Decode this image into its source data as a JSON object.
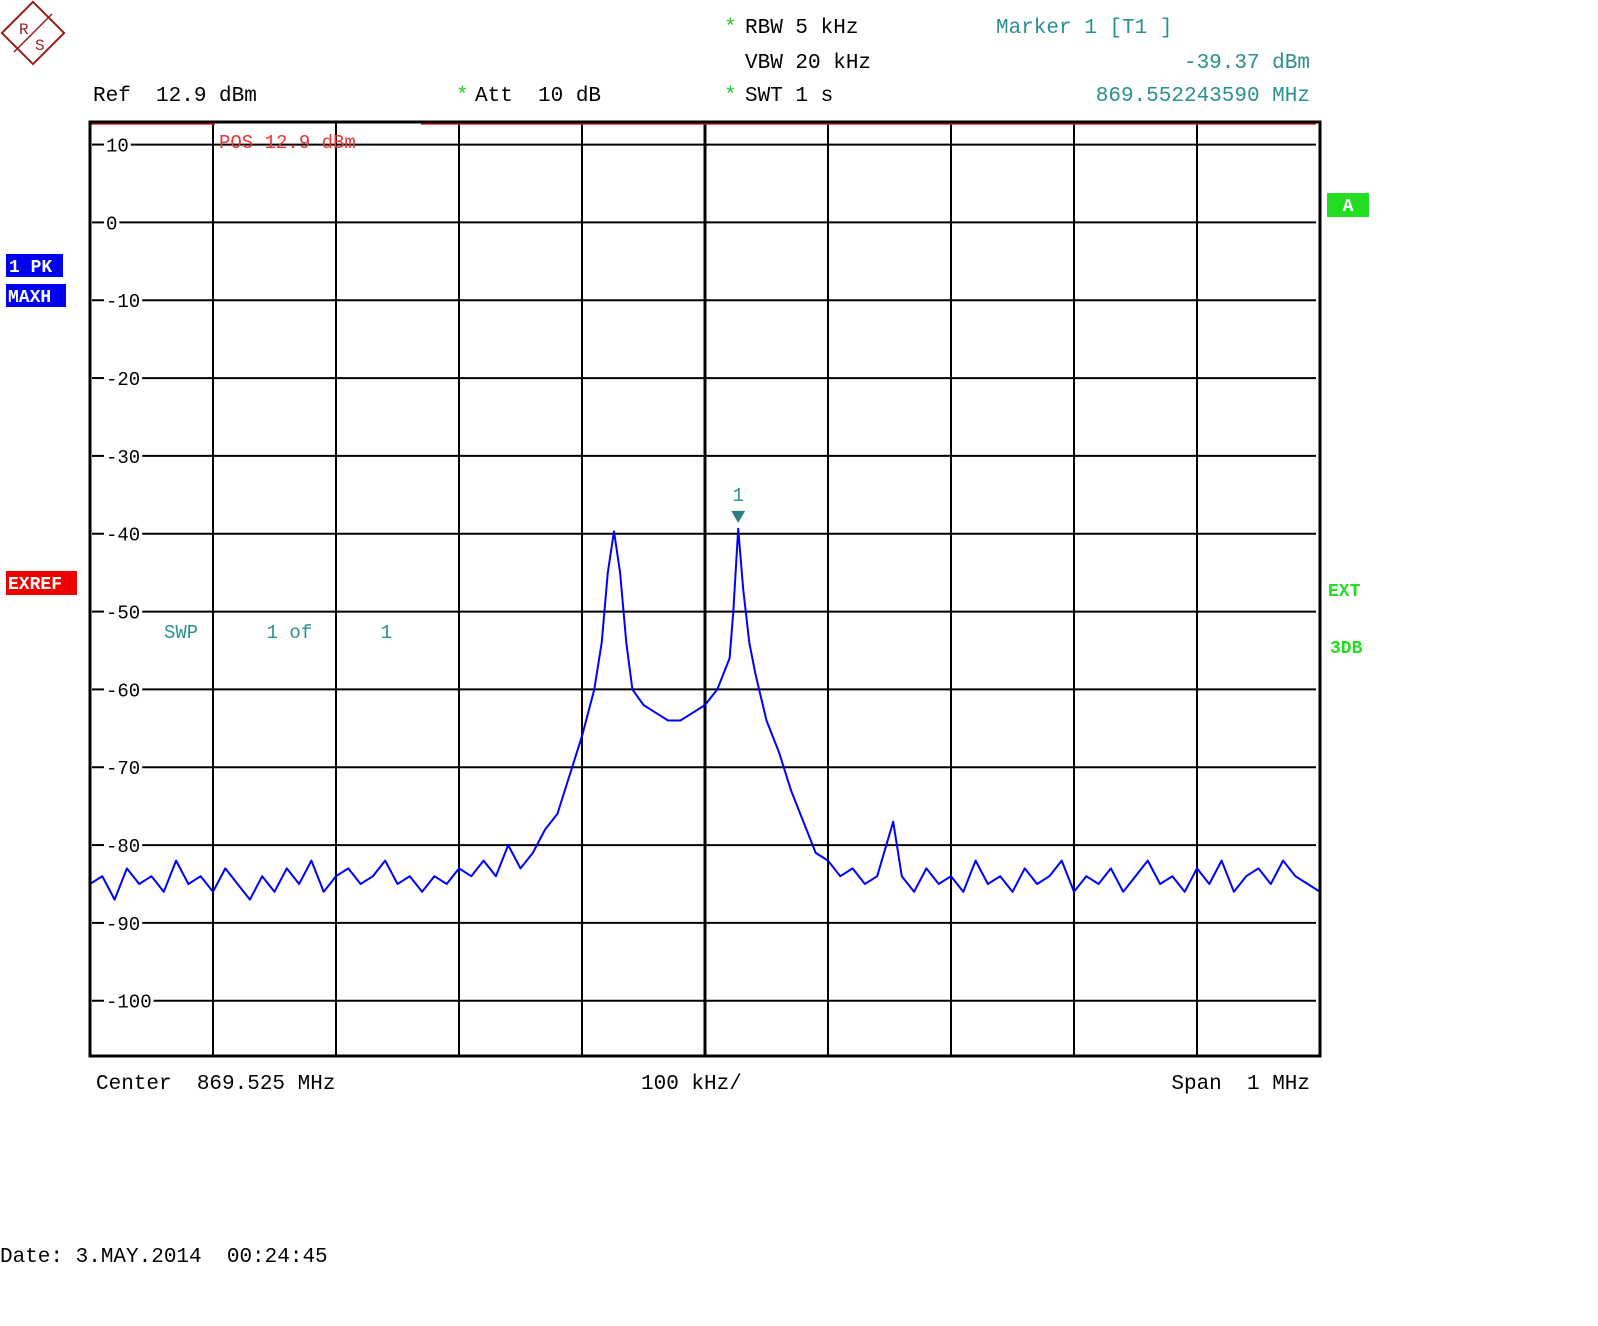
{
  "chart_data": {
    "type": "line",
    "logo_letters": [
      "R",
      "S"
    ],
    "asterisk": "*",
    "labels": {
      "rbw": "RBW 5 kHz",
      "vbw": "VBW 20 kHz",
      "swt": "SWT 1 s",
      "ref": "Ref  12.9 dBm",
      "att": "Att  10 dB",
      "marker_title": "Marker 1 [T1 ]",
      "marker_level": "-39.37 dBm",
      "marker_freq": "869.552243590 MHz",
      "trace": "1 PK",
      "detector": "MAXH",
      "exref": "EXREF",
      "screen": "A",
      "ext": "EXT",
      "db3": "3DB",
      "pos": "POS 12.9 dBm",
      "swp": "SWP      1 of      1",
      "marker_num": "1",
      "center": "Center  869.525 MHz",
      "div": "100 kHz/",
      "span": "Span  1 MHz",
      "date": "Date: 3.MAY.2014  00:24:45"
    },
    "x": [
      869.025,
      869.035,
      869.045,
      869.055,
      869.065,
      869.075,
      869.085,
      869.095,
      869.105,
      869.115,
      869.125,
      869.135,
      869.145,
      869.155,
      869.165,
      869.175,
      869.185,
      869.195,
      869.205,
      869.215,
      869.225,
      869.235,
      869.245,
      869.255,
      869.265,
      869.275,
      869.285,
      869.295,
      869.305,
      869.315,
      869.325,
      869.335,
      869.345,
      869.355,
      869.365,
      869.375,
      869.385,
      869.395,
      869.405,
      869.415,
      869.425,
      869.435,
      869.441,
      869.446,
      869.451,
      869.456,
      869.461,
      869.466,
      869.475,
      869.485,
      869.495,
      869.505,
      869.515,
      869.525,
      869.535,
      869.545,
      869.548,
      869.552,
      869.556,
      869.561,
      869.566,
      869.575,
      869.585,
      869.595,
      869.605,
      869.615,
      869.625,
      869.635,
      869.645,
      869.655,
      869.665,
      869.678,
      869.685,
      869.695,
      869.705,
      869.715,
      869.725,
      869.735,
      869.745,
      869.755,
      869.765,
      869.775,
      869.785,
      869.795,
      869.805,
      869.815,
      869.825,
      869.835,
      869.845,
      869.855,
      869.865,
      869.875,
      869.885,
      869.895,
      869.905,
      869.915,
      869.925,
      869.935,
      869.945,
      869.955,
      869.965,
      869.975,
      869.985,
      869.995,
      870.005,
      870.015,
      870.025
    ],
    "values": [
      -85,
      -84,
      -87,
      -83,
      -85,
      -84,
      -86,
      -82,
      -85,
      -84,
      -86,
      -83,
      -85,
      -87,
      -84,
      -86,
      -83,
      -85,
      -82,
      -86,
      -84,
      -83,
      -85,
      -84,
      -82,
      -85,
      -84,
      -86,
      -84,
      -85,
      -83,
      -84,
      -82,
      -84,
      -80,
      -83,
      -81,
      -78,
      -76,
      -71,
      -66,
      -60,
      -54,
      -45,
      -39.7,
      -45,
      -54,
      -60,
      -62,
      -63,
      -64,
      -64,
      -63,
      -62,
      -60,
      -56,
      -50,
      -39.37,
      -47,
      -54,
      -58,
      -64,
      -68,
      -73,
      -77,
      -81,
      -82,
      -84,
      -83,
      -85,
      -84,
      -77,
      -84,
      -86,
      -83,
      -85,
      -84,
      -86,
      -82,
      -85,
      -84,
      -86,
      -83,
      -85,
      -84,
      -82,
      -86,
      -84,
      -85,
      -83,
      -86,
      -84,
      -82,
      -85,
      -84,
      -86,
      -83,
      -85,
      -82,
      -86,
      -84,
      -83,
      -85,
      -82,
      -84,
      -85,
      -86
    ],
    "color": "#0000ff",
    "marker_index": 57,
    "xlim": [
      869.025,
      870.025
    ],
    "xticks": [
      869.125,
      869.225,
      869.325,
      869.425,
      869.525,
      869.625,
      869.725,
      869.825,
      869.925
    ],
    "ylim": [
      -107.1,
      12.9
    ],
    "yticks": [
      10,
      0,
      -10,
      -20,
      -30,
      -40,
      -50,
      -60,
      -70,
      -80,
      -90,
      -100
    ],
    "grid": true
  }
}
